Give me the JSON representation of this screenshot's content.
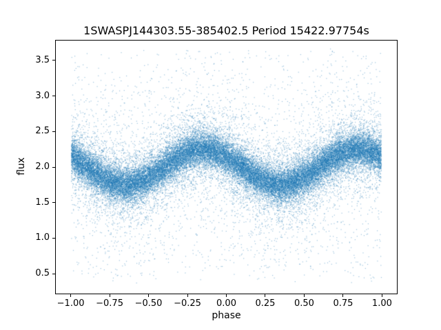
{
  "figure": {
    "background": "#ffffff"
  },
  "chart_data": {
    "type": "scatter",
    "title": "1SWASPJ144303.55-385402.5 Period 15422.97754s",
    "xlabel": "phase",
    "ylabel": "flux",
    "xlim": [
      -1.1,
      1.1
    ],
    "ylim": [
      0.21,
      3.79
    ],
    "x_tick_values": [
      -1.0,
      -0.75,
      -0.5,
      -0.25,
      0.0,
      0.25,
      0.5,
      0.75,
      1.0
    ],
    "x_tick_labels": [
      "−1.00",
      "−0.75",
      "−0.50",
      "−0.25",
      "0.00",
      "0.25",
      "0.50",
      "0.75",
      "1.00"
    ],
    "y_tick_values": [
      0.5,
      1.0,
      1.5,
      2.0,
      2.5,
      3.0,
      3.5
    ],
    "y_tick_labels": [
      "0.5",
      "1.0",
      "1.5",
      "2.0",
      "2.5",
      "3.0",
      "3.5"
    ],
    "grid": false,
    "marker_color": "#1f77b4",
    "marker_alpha": 0.45,
    "marker_size_px": 1.2,
    "model": {
      "description": "Phase-folded light curve: flux = mean_flux + amplitude*cos(2*pi*(phase - peak_phase)) with mixture-of-Gaussians scatter plus a sparse uniform haze; minima near phase -0.65 and +0.35 (flux ~1.75), maxima near phase -0.15 and +0.85 (flux ~2.25)",
      "phase_range": [
        -1.0,
        1.0
      ],
      "mean_flux": 2.0,
      "amplitude": 0.25,
      "peak_phase": -0.15,
      "n_points": 40000,
      "uniform_frac": 0.02,
      "core_frac": 0.7,
      "sigma_core": 0.12,
      "mid_frac": 0.22,
      "sigma_mid": 0.28,
      "sigma_tail": 0.75,
      "flux_extent": [
        0.4,
        3.65
      ]
    }
  }
}
